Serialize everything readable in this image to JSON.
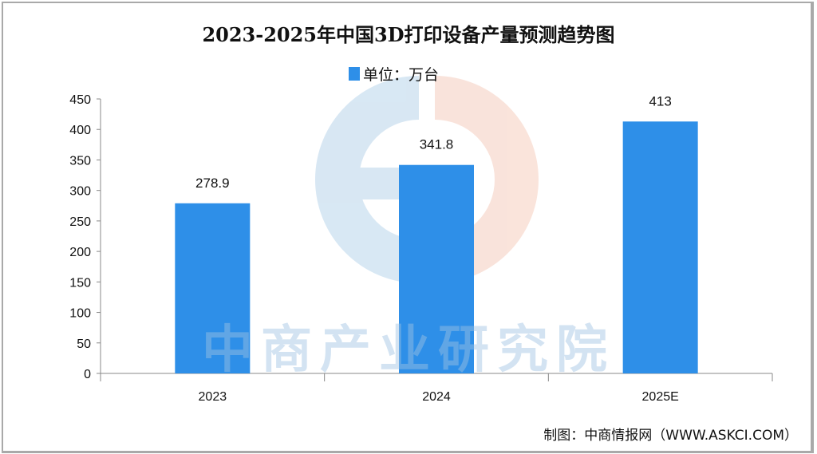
{
  "chart_data": {
    "type": "bar",
    "title": "2023-2025年中国3D打印设备产量预测趋势图",
    "legend": {
      "label": "单位：万台",
      "position": "top-center",
      "color": "#2e8fe8"
    },
    "categories": [
      "2023",
      "2024",
      "2025E"
    ],
    "values": [
      278.9,
      341.8,
      413
    ],
    "data_labels": [
      "278.9",
      "341.8",
      "413"
    ],
    "ylim": [
      0,
      450
    ],
    "yticks": [
      0,
      50,
      100,
      150,
      200,
      250,
      300,
      350,
      400,
      450
    ],
    "xlabel": "",
    "ylabel": "",
    "grid": false,
    "bar_color": "#2e8fe8"
  },
  "source": "制图：中商情报网（WWW.ASKCI.COM）",
  "watermark": "中商产业研究院"
}
